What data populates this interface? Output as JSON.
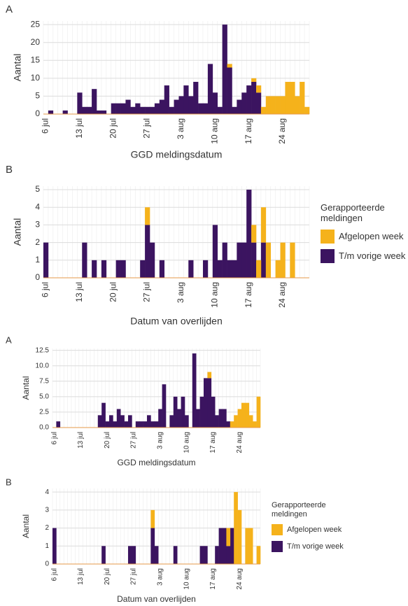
{
  "chart_data": [
    {
      "type": "bar",
      "panel": "A",
      "x_label": "GGD meldingsdatum",
      "y_label": "Aantal",
      "stacked": true,
      "grid": true,
      "categories": [
        "6 jul",
        null,
        null,
        null,
        null,
        null,
        null,
        "13 jul",
        null,
        null,
        null,
        null,
        null,
        null,
        "20 jul",
        null,
        null,
        null,
        null,
        null,
        null,
        "27 jul",
        null,
        null,
        null,
        null,
        null,
        null,
        "3 aug",
        null,
        null,
        null,
        null,
        null,
        null,
        "10 aug",
        null,
        null,
        null,
        null,
        null,
        null,
        "17 aug",
        null,
        null,
        null,
        null,
        null,
        null,
        "24 aug",
        null,
        null,
        null,
        null,
        null
      ],
      "ylim": [
        0,
        26
      ],
      "yticks": [
        0,
        5,
        10,
        15,
        20,
        25
      ],
      "series": [
        {
          "color": "#3b1460",
          "values": [
            0,
            1,
            0,
            0,
            1,
            0,
            0,
            6,
            2,
            2,
            7,
            1,
            1,
            0,
            3,
            3,
            3,
            4,
            2,
            3,
            2,
            2,
            2,
            3,
            4,
            8,
            2,
            4,
            5,
            8,
            5,
            9,
            3,
            3,
            14,
            6,
            2,
            25,
            13,
            2,
            4,
            6,
            8,
            9,
            6,
            0,
            0,
            0,
            0,
            0,
            0,
            0,
            0,
            0,
            0
          ]
        },
        {
          "color": "#f5b21b",
          "values": [
            0,
            0,
            0,
            0,
            0,
            0,
            0,
            0,
            0,
            0,
            0,
            0,
            0,
            0,
            0,
            0,
            0,
            0,
            0,
            0,
            0,
            0,
            0,
            0,
            0,
            0,
            0,
            0,
            0,
            0,
            0,
            0,
            0,
            0,
            0,
            0,
            0,
            0,
            1,
            0,
            0,
            0,
            0,
            1,
            2,
            2,
            5,
            5,
            5,
            5,
            9,
            9,
            5,
            9,
            2
          ]
        }
      ]
    },
    {
      "type": "bar",
      "panel": "B",
      "x_label": "Datum van overlijden",
      "y_label": "Aantal",
      "stacked": true,
      "grid": true,
      "legend_title": "Gerapporteerde meldingen",
      "categories": [
        "6 jul",
        null,
        null,
        null,
        null,
        null,
        null,
        "13 jul",
        null,
        null,
        null,
        null,
        null,
        null,
        "20 jul",
        null,
        null,
        null,
        null,
        null,
        null,
        "27 jul",
        null,
        null,
        null,
        null,
        null,
        null,
        "3 aug",
        null,
        null,
        null,
        null,
        null,
        null,
        "10 aug",
        null,
        null,
        null,
        null,
        null,
        null,
        "17 aug",
        null,
        null,
        null,
        null,
        null,
        null,
        "24 aug",
        null,
        null,
        null,
        null,
        null
      ],
      "ylim": [
        0,
        5.2
      ],
      "yticks": [
        0,
        1,
        2,
        3,
        4,
        5
      ],
      "series": [
        {
          "name": "T/m vorige week",
          "color": "#3b1460",
          "values": [
            2,
            0,
            0,
            0,
            0,
            0,
            0,
            0,
            2,
            0,
            1,
            0,
            1,
            0,
            0,
            1,
            1,
            0,
            0,
            0,
            1,
            3,
            2,
            0,
            1,
            0,
            0,
            0,
            0,
            0,
            1,
            0,
            0,
            1,
            0,
            3,
            1,
            2,
            1,
            1,
            2,
            2,
            5,
            2,
            0,
            2,
            0,
            0,
            0,
            0,
            0,
            0,
            0,
            0,
            0
          ]
        },
        {
          "name": "Afgelopen week",
          "color": "#f5b21b",
          "values": [
            0,
            0,
            0,
            0,
            0,
            0,
            0,
            0,
            0,
            0,
            0,
            0,
            0,
            0,
            0,
            0,
            0,
            0,
            0,
            0,
            0,
            1,
            0,
            0,
            0,
            0,
            0,
            0,
            0,
            0,
            0,
            0,
            0,
            0,
            0,
            0,
            0,
            0,
            0,
            0,
            0,
            0,
            0,
            1,
            1,
            2,
            2,
            0,
            1,
            2,
            0,
            2,
            0,
            0,
            0
          ]
        }
      ]
    },
    {
      "type": "bar",
      "panel": "A",
      "x_label": "GGD meldingsdatum",
      "y_label": "Aantal",
      "stacked": true,
      "grid": true,
      "categories": [
        "6 jul",
        null,
        null,
        null,
        null,
        null,
        null,
        "13 jul",
        null,
        null,
        null,
        null,
        null,
        null,
        "20 jul",
        null,
        null,
        null,
        null,
        null,
        null,
        "27 jul",
        null,
        null,
        null,
        null,
        null,
        null,
        "3 aug",
        null,
        null,
        null,
        null,
        null,
        null,
        "10 aug",
        null,
        null,
        null,
        null,
        null,
        null,
        "17 aug",
        null,
        null,
        null,
        null,
        null,
        null,
        "24 aug",
        null,
        null,
        null,
        null,
        null
      ],
      "ylim": [
        0,
        12.8
      ],
      "yticks": [
        {
          "value": 0,
          "label": "0.0"
        },
        2.5,
        {
          "value": 5,
          "label": "5.0"
        },
        7.5,
        {
          "value": 10,
          "label": "10.0"
        },
        12.5
      ],
      "series": [
        {
          "color": "#3b1460",
          "values": [
            0,
            1,
            0,
            0,
            0,
            0,
            0,
            0,
            0,
            0,
            0,
            0,
            2,
            4,
            1,
            2,
            1,
            3,
            2,
            1,
            2,
            0,
            1,
            1,
            1,
            2,
            1,
            1,
            3,
            7,
            0,
            2,
            5,
            3,
            5,
            2,
            0,
            12,
            3,
            5,
            8,
            8,
            5,
            2,
            3,
            3,
            1,
            0,
            0,
            0,
            0,
            0,
            0,
            0,
            0
          ]
        },
        {
          "color": "#f5b21b",
          "values": [
            0,
            0,
            0,
            0,
            0,
            0,
            0,
            0,
            0,
            0,
            0,
            0,
            0,
            0,
            0,
            0,
            0,
            0,
            0,
            0,
            0,
            0,
            0,
            0,
            0,
            0,
            0,
            0,
            0,
            0,
            0,
            0,
            0,
            0,
            0,
            0,
            0,
            0,
            0,
            0,
            0,
            1,
            0,
            0,
            0,
            0,
            0,
            1,
            2,
            3,
            4,
            4,
            2,
            1,
            5
          ]
        }
      ]
    },
    {
      "type": "bar",
      "panel": "B",
      "x_label": "Datum van overlijden",
      "y_label": "Aantal",
      "stacked": true,
      "grid": true,
      "legend_title": "Gerapporteerde meldingen",
      "categories": [
        "6 jul",
        null,
        null,
        null,
        null,
        null,
        null,
        "13 jul",
        null,
        null,
        null,
        null,
        null,
        null,
        "20 jul",
        null,
        null,
        null,
        null,
        null,
        null,
        "27 jul",
        null,
        null,
        null,
        null,
        null,
        null,
        "3 aug",
        null,
        null,
        null,
        null,
        null,
        null,
        "10 aug",
        null,
        null,
        null,
        null,
        null,
        null,
        "17 aug",
        null,
        null,
        null,
        null,
        null,
        null,
        "24 aug",
        null,
        null,
        null,
        null,
        null
      ],
      "ylim": [
        0,
        4.2
      ],
      "yticks": [
        0,
        1,
        2,
        3,
        4
      ],
      "series": [
        {
          "name": "T/m vorige week",
          "color": "#3b1460",
          "values": [
            2,
            0,
            0,
            0,
            0,
            0,
            0,
            0,
            0,
            0,
            0,
            0,
            0,
            1,
            0,
            0,
            0,
            0,
            0,
            0,
            1,
            1,
            0,
            0,
            0,
            0,
            2,
            1,
            0,
            0,
            0,
            0,
            1,
            0,
            0,
            0,
            0,
            0,
            0,
            1,
            1,
            0,
            0,
            1,
            2,
            2,
            1,
            2,
            0,
            0,
            0,
            0,
            0,
            0,
            0
          ]
        },
        {
          "name": "Afgelopen week",
          "color": "#f5b21b",
          "values": [
            0,
            0,
            0,
            0,
            0,
            0,
            0,
            0,
            0,
            0,
            0,
            0,
            0,
            0,
            0,
            0,
            0,
            0,
            0,
            0,
            0,
            0,
            0,
            0,
            0,
            0,
            1,
            0,
            0,
            0,
            0,
            0,
            0,
            0,
            0,
            0,
            0,
            0,
            0,
            0,
            0,
            0,
            0,
            0,
            0,
            0,
            1,
            0,
            4,
            3,
            0,
            2,
            2,
            0,
            1
          ]
        }
      ]
    }
  ]
}
